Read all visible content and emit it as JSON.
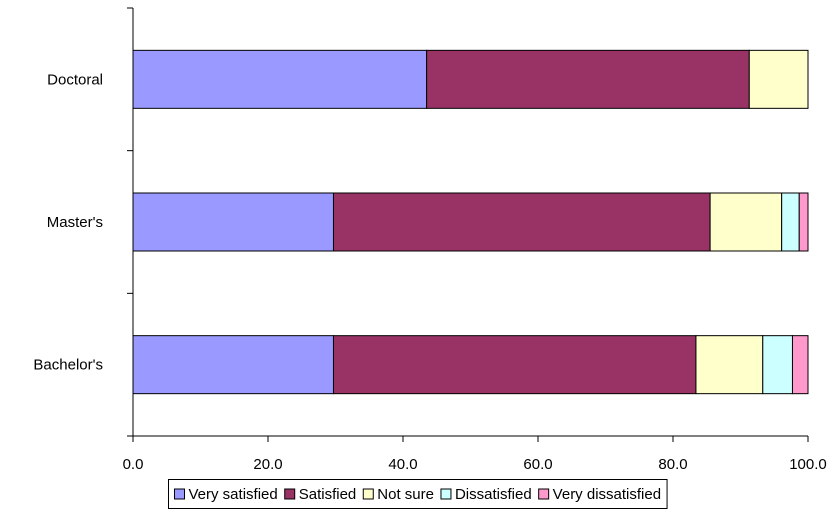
{
  "chart_data": {
    "type": "bar",
    "orientation": "horizontal",
    "stacked": true,
    "title": "",
    "xlabel": "",
    "ylabel": "",
    "categories": [
      "Bachelor's",
      "Master's",
      "Doctoral"
    ],
    "series": [
      {
        "name": "Very satisfied",
        "color": "#9999ff",
        "values": [
          29.7,
          29.7,
          43.5
        ]
      },
      {
        "name": "Satisfied",
        "color": "#993366",
        "values": [
          53.7,
          55.8,
          47.8
        ]
      },
      {
        "name": "Not sure",
        "color": "#ffffcc",
        "values": [
          9.9,
          10.6,
          8.7
        ]
      },
      {
        "name": "Dissatisfied",
        "color": "#ccffff",
        "values": [
          4.4,
          2.6,
          0
        ]
      },
      {
        "name": "Very dissatisfied",
        "color": "#ff99cc",
        "values": [
          2.3,
          1.3,
          0
        ]
      }
    ],
    "xlim": [
      0,
      100
    ],
    "xticks": [
      "0.0",
      "20.0",
      "40.0",
      "60.0",
      "80.0",
      "100.0"
    ],
    "xtick_values": [
      0,
      20,
      40,
      60,
      80,
      100
    ],
    "grid": false,
    "legend": {
      "placement": "bottom"
    }
  }
}
